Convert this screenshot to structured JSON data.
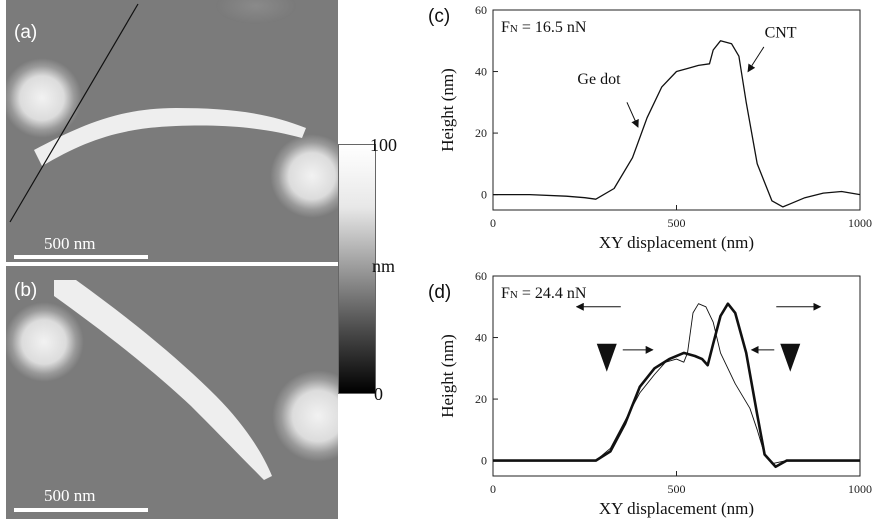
{
  "afm_images": [
    {
      "panel": "(a)",
      "scale_bar": "500 nm"
    },
    {
      "panel": "(b)",
      "scale_bar": "500 nm"
    }
  ],
  "colorbar": {
    "max": "100",
    "unit": "nm",
    "min": "0"
  },
  "chart_data": [
    {
      "type": "line",
      "panel": "(c)",
      "annotation_force": "F",
      "annotation_force_sub": "N",
      "annotation_force_value": " = 16.5 nN",
      "annotations": [
        "Ge dot",
        "CNT"
      ],
      "xlabel": "XY displacement (nm)",
      "ylabel": "Height (nm)",
      "xlim": [
        0,
        1000
      ],
      "ylim": [
        -5,
        60
      ],
      "xticks": [
        "0",
        "500",
        "1000"
      ],
      "yticks": [
        "0",
        "20",
        "40",
        "60"
      ],
      "series": [
        {
          "x": [
            0,
            100,
            200,
            250,
            280,
            330,
            380,
            420,
            460,
            500,
            530,
            560,
            590,
            600,
            620,
            650,
            670,
            690,
            720,
            760,
            790,
            810,
            850,
            900,
            950,
            1000
          ],
          "y": [
            0,
            0,
            -0.5,
            -1,
            -1.5,
            2,
            12,
            25,
            35,
            40,
            41,
            42,
            42.5,
            47,
            50,
            49,
            45,
            30,
            10,
            -2,
            -4,
            -3,
            -1,
            0.5,
            1,
            0
          ]
        }
      ]
    },
    {
      "type": "line",
      "panel": "(d)",
      "annotation_force": "F",
      "annotation_force_sub": "N",
      "annotation_force_value": " = 24.4 nN",
      "xlabel": "XY displacement (nm)",
      "ylabel": "Height (nm)",
      "xlim": [
        0,
        1000
      ],
      "ylim": [
        -5,
        60
      ],
      "xticks": [
        "0",
        "500",
        "1000"
      ],
      "yticks": [
        "0",
        "20",
        "40",
        "60"
      ],
      "series": [
        {
          "style": "thin",
          "x": [
            0,
            200,
            280,
            320,
            360,
            400,
            440,
            470,
            500,
            520,
            530,
            545,
            560,
            580,
            600,
            620,
            660,
            700,
            720,
            740,
            760,
            800,
            900,
            1000
          ],
          "y": [
            0,
            0,
            0,
            4,
            13,
            22,
            28,
            32,
            33,
            32,
            35,
            48,
            51,
            50,
            45,
            35,
            25,
            17,
            10,
            2,
            -1,
            0,
            0,
            0
          ]
        },
        {
          "style": "thick",
          "x": [
            0,
            200,
            280,
            320,
            360,
            400,
            440,
            480,
            520,
            550,
            570,
            585,
            600,
            620,
            640,
            660,
            690,
            720,
            740,
            770,
            800,
            900,
            1000
          ],
          "y": [
            0,
            0,
            0,
            3,
            12,
            24,
            30,
            33,
            35,
            34,
            33,
            31,
            38,
            47,
            51,
            48,
            35,
            15,
            2,
            -2,
            0,
            0,
            0
          ]
        }
      ]
    }
  ]
}
